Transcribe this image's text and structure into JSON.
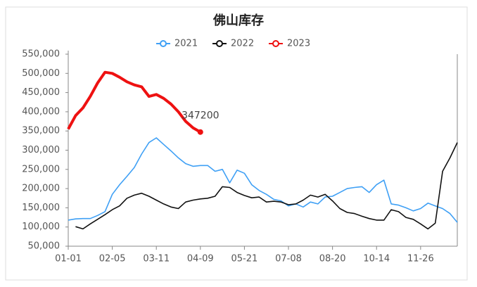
{
  "chart_data": {
    "type": "line",
    "title": "佛山库存",
    "categories": [
      "01-01",
      null,
      null,
      null,
      null,
      null,
      "02-05",
      null,
      null,
      null,
      null,
      null,
      "03-11",
      null,
      null,
      null,
      null,
      null,
      "04-09",
      null,
      null,
      null,
      null,
      null,
      "05-21",
      null,
      null,
      null,
      null,
      null,
      "07-08",
      null,
      null,
      null,
      null,
      null,
      "08-20",
      null,
      null,
      null,
      null,
      null,
      "10-14",
      null,
      null,
      null,
      null,
      null,
      "11-26",
      null,
      null,
      null,
      null,
      null
    ],
    "series": [
      {
        "name": "2021",
        "color": "#3fa0f5",
        "values": [
          118000,
          121000,
          122000,
          122000,
          130000,
          140000,
          185000,
          210000,
          232000,
          255000,
          290000,
          320000,
          332000,
          315000,
          298000,
          280000,
          265000,
          258000,
          260000,
          260000,
          245000,
          250000,
          215000,
          248000,
          240000,
          210000,
          195000,
          185000,
          172000,
          168000,
          155000,
          160000,
          152000,
          165000,
          160000,
          178000,
          180000,
          190000,
          200000,
          203000,
          205000,
          190000,
          210000,
          222000,
          160000,
          157000,
          150000,
          142000,
          148000,
          162000,
          155000,
          148000,
          135000,
          112000
        ]
      },
      {
        "name": "2022",
        "color": "#111111",
        "values": [
          null,
          101000,
          95000,
          108000,
          120000,
          132000,
          145000,
          155000,
          175000,
          183000,
          188000,
          180000,
          170000,
          160000,
          152000,
          148000,
          165000,
          170000,
          173000,
          175000,
          180000,
          205000,
          203000,
          190000,
          182000,
          176000,
          178000,
          165000,
          167000,
          165000,
          158000,
          160000,
          170000,
          183000,
          178000,
          185000,
          168000,
          148000,
          138000,
          135000,
          128000,
          122000,
          118000,
          118000,
          145000,
          140000,
          125000,
          120000,
          108000,
          95000,
          110000,
          245000,
          280000,
          320000
        ]
      },
      {
        "name": "2023",
        "color": "#ee1111",
        "values": [
          355000,
          390000,
          410000,
          440000,
          475000,
          503000,
          500000,
          490000,
          478000,
          470000,
          465000,
          440000,
          445000,
          435000,
          420000,
          400000,
          375000,
          358000,
          347200,
          null,
          null,
          null,
          null,
          null,
          null,
          null,
          null,
          null,
          null,
          null,
          null,
          null,
          null,
          null,
          null,
          null,
          null,
          null,
          null,
          null,
          null,
          null,
          null,
          null,
          null,
          null,
          null,
          null,
          null,
          null,
          null,
          null,
          null,
          null
        ]
      }
    ],
    "ylim": [
      50000,
      550000
    ],
    "yticks": [
      {
        "value": 50000,
        "label": "50,000"
      },
      {
        "value": 100000,
        "label": "100,000"
      },
      {
        "value": 150000,
        "label": "150,000"
      },
      {
        "value": 200000,
        "label": "200,000"
      },
      {
        "value": 250000,
        "label": "250,000"
      },
      {
        "value": 300000,
        "label": "300,000"
      },
      {
        "value": 350000,
        "label": "350,000"
      },
      {
        "value": 400000,
        "label": "400,000"
      },
      {
        "value": 450000,
        "label": "450,000"
      },
      {
        "value": 500000,
        "label": "500,000"
      },
      {
        "value": 550000,
        "label": "550,000"
      }
    ],
    "legend": "top"
  }
}
